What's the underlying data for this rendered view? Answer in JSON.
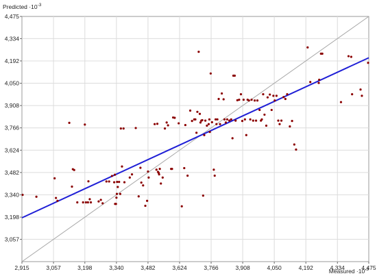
{
  "chart_data": {
    "type": "scatter",
    "ylabel": "Predicted",
    "xlabel": "Measured",
    "axis_exponent": "-3",
    "xlim": [
      2915,
      4475
    ],
    "ylim": [
      2915,
      4475
    ],
    "x_ticks": [
      "2,915",
      "3,057",
      "3,198",
      "3,340",
      "3,482",
      "3,624",
      "3,766",
      "3,908",
      "4,050",
      "4,192",
      "4,334",
      "4,475"
    ],
    "y_ticks": [
      "4,475",
      "4,334",
      "4,192",
      "4,050",
      "3,908",
      "3,766",
      "3,624",
      "3,482",
      "3,340",
      "3,198",
      "3,057"
    ],
    "grid": true,
    "colors": {
      "points": "#8b0000",
      "regression": "#1f1fd6",
      "identity": "#a8a8a8",
      "grid": "#dcdcdc",
      "frame": "#999999"
    },
    "identity_line": {
      "from": [
        2915,
        2915
      ],
      "to": [
        4475,
        4475
      ]
    },
    "regression_line": {
      "from": [
        2915,
        3194
      ],
      "to": [
        4475,
        4212
      ]
    },
    "points": [
      [
        2918,
        3340
      ],
      [
        2980,
        3328
      ],
      [
        3062,
        3445
      ],
      [
        3068,
        3320
      ],
      [
        3075,
        3302
      ],
      [
        3128,
        3798
      ],
      [
        3140,
        3392
      ],
      [
        3144,
        3503
      ],
      [
        3150,
        3498
      ],
      [
        3164,
        3292
      ],
      [
        3190,
        3292
      ],
      [
        3198,
        3787
      ],
      [
        3203,
        3292
      ],
      [
        3212,
        3292
      ],
      [
        3214,
        3426
      ],
      [
        3220,
        3312
      ],
      [
        3225,
        3292
      ],
      [
        3260,
        3298
      ],
      [
        3270,
        3308
      ],
      [
        3278,
        3286
      ],
      [
        3295,
        3425
      ],
      [
        3307,
        3425
      ],
      [
        3320,
        3460
      ],
      [
        3330,
        3420
      ],
      [
        3333,
        3468
      ],
      [
        3334,
        3282
      ],
      [
        3338,
        3282
      ],
      [
        3340,
        3322
      ],
      [
        3342,
        3346
      ],
      [
        3343,
        3422
      ],
      [
        3346,
        3390
      ],
      [
        3352,
        3422
      ],
      [
        3357,
        3346
      ],
      [
        3360,
        3762
      ],
      [
        3365,
        3520
      ],
      [
        3372,
        3762
      ],
      [
        3376,
        3420
      ],
      [
        3400,
        3450
      ],
      [
        3410,
        3470
      ],
      [
        3427,
        3765
      ],
      [
        3440,
        3330
      ],
      [
        3448,
        3512
      ],
      [
        3452,
        3418
      ],
      [
        3460,
        3400
      ],
      [
        3470,
        3270
      ],
      [
        3478,
        3302
      ],
      [
        3482,
        3488
      ],
      [
        3485,
        3450
      ],
      [
        3512,
        3790
      ],
      [
        3520,
        3500
      ],
      [
        3524,
        3792
      ],
      [
        3527,
        3486
      ],
      [
        3530,
        3480
      ],
      [
        3532,
        3470
      ],
      [
        3535,
        3505
      ],
      [
        3540,
        3412
      ],
      [
        3548,
        3450
      ],
      [
        3558,
        3762
      ],
      [
        3566,
        3800
      ],
      [
        3572,
        3782
      ],
      [
        3586,
        3505
      ],
      [
        3590,
        3505
      ],
      [
        3595,
        3832
      ],
      [
        3602,
        3830
      ],
      [
        3620,
        3795
      ],
      [
        3634,
        3267
      ],
      [
        3645,
        3510
      ],
      [
        3650,
        3784
      ],
      [
        3660,
        3462
      ],
      [
        3672,
        3876
      ],
      [
        3680,
        3810
      ],
      [
        3690,
        3820
      ],
      [
        3695,
        3820
      ],
      [
        3700,
        3735
      ],
      [
        3704,
        3868
      ],
      [
        3710,
        4250
      ],
      [
        3715,
        3855
      ],
      [
        3718,
        3800
      ],
      [
        3722,
        3812
      ],
      [
        3726,
        3815
      ],
      [
        3730,
        3335
      ],
      [
        3735,
        3720
      ],
      [
        3740,
        3812
      ],
      [
        3747,
        3780
      ],
      [
        3755,
        3790
      ],
      [
        3758,
        3820
      ],
      [
        3760,
        3740
      ],
      [
        3764,
        4112
      ],
      [
        3770,
        3802
      ],
      [
        3778,
        3500
      ],
      [
        3782,
        3462
      ],
      [
        3786,
        3820
      ],
      [
        3790,
        3790
      ],
      [
        3794,
        3820
      ],
      [
        3800,
        3950
      ],
      [
        3806,
        3790
      ],
      [
        3814,
        3985
      ],
      [
        3822,
        3948
      ],
      [
        3826,
        3820
      ],
      [
        3832,
        3800
      ],
      [
        3838,
        3820
      ],
      [
        3848,
        3812
      ],
      [
        3856,
        3820
      ],
      [
        3862,
        3700
      ],
      [
        3866,
        4098
      ],
      [
        3872,
        4098
      ],
      [
        3876,
        3812
      ],
      [
        3884,
        3942
      ],
      [
        3892,
        3945
      ],
      [
        3900,
        3980
      ],
      [
        3906,
        3810
      ],
      [
        3912,
        3945
      ],
      [
        3918,
        3820
      ],
      [
        3924,
        3720
      ],
      [
        3930,
        3945
      ],
      [
        3936,
        3940
      ],
      [
        3942,
        3820
      ],
      [
        3948,
        3945
      ],
      [
        3955,
        3812
      ],
      [
        3962,
        3940
      ],
      [
        3968,
        3812
      ],
      [
        3974,
        3940
      ],
      [
        3984,
        3880
      ],
      [
        3990,
        3812
      ],
      [
        3994,
        3820
      ],
      [
        4000,
        3980
      ],
      [
        4006,
        3850
      ],
      [
        4014,
        3780
      ],
      [
        4020,
        3960
      ],
      [
        4030,
        3978
      ],
      [
        4038,
        3880
      ],
      [
        4046,
        3970
      ],
      [
        4052,
        3940
      ],
      [
        4060,
        3970
      ],
      [
        4068,
        3812
      ],
      [
        4074,
        3790
      ],
      [
        4082,
        3812
      ],
      [
        4092,
        3962
      ],
      [
        4100,
        3950
      ],
      [
        4108,
        3980
      ],
      [
        4120,
        3775
      ],
      [
        4130,
        3810
      ],
      [
        4140,
        3660
      ],
      [
        4148,
        3628
      ],
      [
        4200,
        4278
      ],
      [
        4212,
        4058
      ],
      [
        4250,
        4052
      ],
      [
        4252,
        4072
      ],
      [
        4260,
        4238
      ],
      [
        4266,
        4238
      ],
      [
        4350,
        3930
      ],
      [
        4384,
        4222
      ],
      [
        4396,
        4218
      ],
      [
        4400,
        3980
      ],
      [
        4438,
        4010
      ],
      [
        4444,
        3970
      ],
      [
        4472,
        4180
      ]
    ]
  }
}
